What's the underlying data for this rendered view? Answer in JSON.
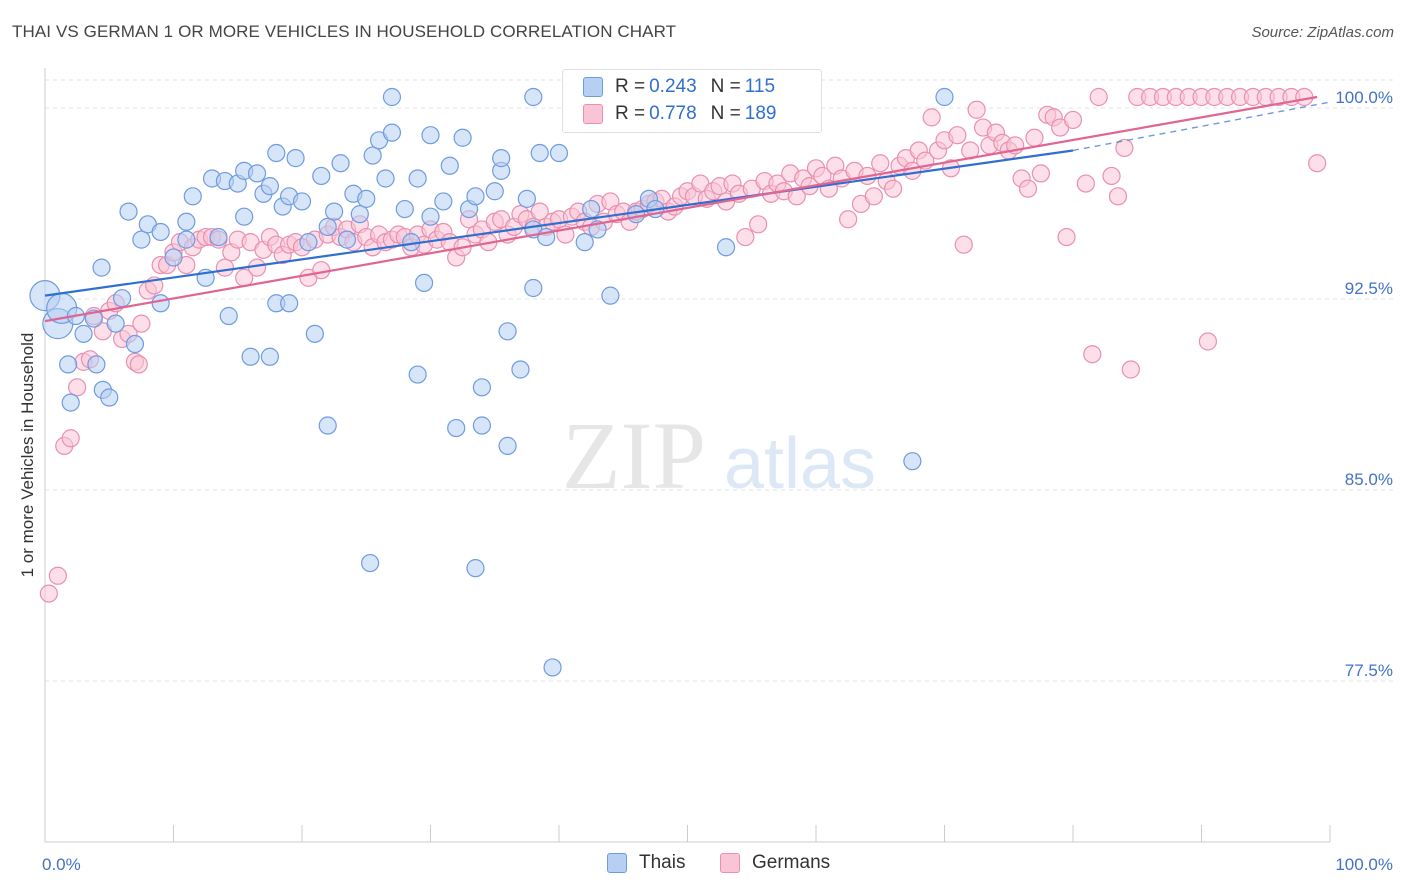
{
  "title": "THAI VS GERMAN 1 OR MORE VEHICLES IN HOUSEHOLD CORRELATION CHART",
  "source": "Source: ZipAtlas.com",
  "watermark": {
    "zip": "ZIP",
    "atlas": "atlas"
  },
  "legend": {
    "r_label": "R =",
    "n_label": "N =",
    "rows": [
      {
        "r": "0.243",
        "n": "115"
      },
      {
        "r": "0.778",
        "n": "189"
      }
    ]
  },
  "colors": {
    "thais_fill": "#b7cff3",
    "thais_stroke": "#6f9be0",
    "thais_line": "#2f6fcf",
    "germans_fill": "#f9c4d6",
    "germans_stroke": "#ea8fb0",
    "germans_line": "#e06593",
    "tick_text": "#4472c4",
    "grid": "#e3e3e3"
  },
  "chart_data": {
    "type": "scatter",
    "title": "THAI VS GERMAN 1 OR MORE VEHICLES IN HOUSEHOLD CORRELATION CHART",
    "xlabel": "",
    "ylabel": "1 or more Vehicles in Household",
    "xlim": [
      0,
      100
    ],
    "ylim": [
      71,
      102
    ],
    "x_ticks": [
      "0.0%",
      "100.0%"
    ],
    "y_ticks": [
      {
        "value": 100,
        "label": "100.0%"
      },
      {
        "value": 92.5,
        "label": "92.5%"
      },
      {
        "value": 85,
        "label": "85.0%"
      },
      {
        "value": 77.5,
        "label": "77.5%"
      }
    ],
    "grid": "horizontal dashed",
    "legend_position": "top-center",
    "series": [
      {
        "name": "Thais",
        "r": 0.243,
        "n": 115,
        "trend": {
          "x0": 0,
          "y0": 92.2,
          "x1": 80,
          "y1": 97.9,
          "dashed_to_x": 100,
          "dashed_to_y": 99.8
        },
        "points": [
          [
            0,
            92.2,
            "l"
          ],
          [
            1,
            91.1,
            "l"
          ],
          [
            1.3,
            91.7,
            "l"
          ],
          [
            1.8,
            89.5
          ],
          [
            2,
            88
          ],
          [
            2.4,
            91.4
          ],
          [
            3,
            90.7
          ],
          [
            3.8,
            91.3
          ],
          [
            4,
            89.5
          ],
          [
            4.5,
            88.5
          ],
          [
            5,
            88.2
          ],
          [
            5.5,
            91.1
          ],
          [
            6,
            92.1
          ],
          [
            4.4,
            93.3
          ],
          [
            6.5,
            95.5
          ],
          [
            7,
            90.3
          ],
          [
            7.5,
            94.4
          ],
          [
            8,
            95
          ],
          [
            9,
            94.7
          ],
          [
            9,
            91.9
          ],
          [
            10,
            93.7
          ],
          [
            11,
            95.1
          ],
          [
            11,
            94.4
          ],
          [
            11.5,
            96.1
          ],
          [
            12.5,
            92.9
          ],
          [
            13,
            96.8
          ],
          [
            13.5,
            94.5
          ],
          [
            14,
            96.7
          ],
          [
            14.3,
            91.4
          ],
          [
            15,
            96.6
          ],
          [
            15.5,
            95.3
          ],
          [
            15.5,
            97.1
          ],
          [
            16,
            89.8
          ],
          [
            16.5,
            97
          ],
          [
            17,
            96.2
          ],
          [
            17.5,
            89.8
          ],
          [
            17.5,
            96.5
          ],
          [
            18,
            91.9
          ],
          [
            18,
            97.8
          ],
          [
            18.5,
            95.7
          ],
          [
            19,
            91.9
          ],
          [
            19,
            96.1
          ],
          [
            19.5,
            97.6
          ],
          [
            20,
            95.9
          ],
          [
            20.5,
            94.3
          ],
          [
            21,
            90.7
          ],
          [
            21.5,
            96.9
          ],
          [
            22,
            94.9
          ],
          [
            22,
            87.1
          ],
          [
            22.5,
            95.5
          ],
          [
            23,
            97.4
          ],
          [
            23.5,
            94.4
          ],
          [
            24,
            96.2
          ],
          [
            24.5,
            95.4
          ],
          [
            25,
            96
          ],
          [
            25.3,
            81.7
          ],
          [
            25.5,
            97.7
          ],
          [
            26,
            98.3
          ],
          [
            26.5,
            96.8
          ],
          [
            27,
            98.6
          ],
          [
            27,
            100
          ],
          [
            28,
            95.6
          ],
          [
            28.5,
            94.3
          ],
          [
            29,
            89.1
          ],
          [
            29,
            96.8
          ],
          [
            29.5,
            92.7
          ],
          [
            30,
            95.3
          ],
          [
            30,
            98.5
          ],
          [
            31,
            95.9
          ],
          [
            31.5,
            97.3
          ],
          [
            32,
            87
          ],
          [
            32.5,
            98.4
          ],
          [
            33,
            95.6
          ],
          [
            33.5,
            81.5
          ],
          [
            33.5,
            96.1
          ],
          [
            34,
            87.1
          ],
          [
            34,
            88.6
          ],
          [
            35,
            96.3
          ],
          [
            35.5,
            97.1
          ],
          [
            35.5,
            97.6
          ],
          [
            36,
            86.3
          ],
          [
            36,
            90.8
          ],
          [
            37,
            89.3
          ],
          [
            37.5,
            96
          ],
          [
            38,
            100
          ],
          [
            38,
            94.8
          ],
          [
            38,
            92.5
          ],
          [
            38.5,
            97.8
          ],
          [
            39,
            94.5
          ],
          [
            39.5,
            77.6
          ],
          [
            40,
            97.8
          ],
          [
            41,
            100
          ],
          [
            42,
            94.3
          ],
          [
            42.5,
            95.6
          ],
          [
            43,
            94.8
          ],
          [
            44,
            92.2
          ],
          [
            46,
            95.4
          ],
          [
            47,
            96
          ],
          [
            47.5,
            95.6
          ],
          [
            53,
            94.1
          ],
          [
            67.5,
            85.7
          ],
          [
            70,
            100
          ]
        ]
      },
      {
        "name": "Germans",
        "r": 0.778,
        "n": 189,
        "trend": {
          "x0": 0,
          "y0": 91.2,
          "x1": 99,
          "y1": 100
        },
        "points": [
          [
            0.3,
            80.5
          ],
          [
            1,
            81.2
          ],
          [
            1.5,
            86.3
          ],
          [
            2,
            86.6
          ],
          [
            2.5,
            88.6
          ],
          [
            3,
            89.6
          ],
          [
            3.5,
            89.7
          ],
          [
            3.8,
            91.4
          ],
          [
            4.5,
            90.8
          ],
          [
            5,
            91.6
          ],
          [
            5.5,
            91.9
          ],
          [
            6,
            90.5
          ],
          [
            6.5,
            90.7
          ],
          [
            7,
            89.6
          ],
          [
            7.3,
            89.5
          ],
          [
            7.5,
            91.1
          ],
          [
            8,
            92.4
          ],
          [
            8.5,
            92.6
          ],
          [
            9,
            93.4
          ],
          [
            9.5,
            93.4
          ],
          [
            10,
            93.9
          ],
          [
            10.5,
            94.3
          ],
          [
            11,
            93.4
          ],
          [
            11.5,
            94.1
          ],
          [
            12,
            94.4
          ],
          [
            12.5,
            94.5
          ],
          [
            13,
            94.5
          ],
          [
            13.5,
            94.4
          ],
          [
            14,
            93.3
          ],
          [
            14.5,
            93.9
          ],
          [
            15,
            94.4
          ],
          [
            15.5,
            92.9
          ],
          [
            16,
            94.3
          ],
          [
            16.5,
            93.3
          ],
          [
            17,
            94
          ],
          [
            17.5,
            94.5
          ],
          [
            18,
            94.2
          ],
          [
            18.5,
            93.8
          ],
          [
            19,
            94.2
          ],
          [
            19.5,
            94.3
          ],
          [
            20,
            94.1
          ],
          [
            20.5,
            92.9
          ],
          [
            21,
            94.4
          ],
          [
            21.5,
            93.2
          ],
          [
            22,
            94.6
          ],
          [
            22.5,
            94.9
          ],
          [
            23,
            94.5
          ],
          [
            23.5,
            94.8
          ],
          [
            24,
            94.3
          ],
          [
            24.5,
            95
          ],
          [
            25,
            94.5
          ],
          [
            25.5,
            94.1
          ],
          [
            26,
            94.6
          ],
          [
            26.5,
            94.3
          ],
          [
            27,
            94.4
          ],
          [
            27.5,
            94.6
          ],
          [
            28,
            94.5
          ],
          [
            28.5,
            94.1
          ],
          [
            29,
            94.6
          ],
          [
            29.5,
            94.2
          ],
          [
            30,
            94.8
          ],
          [
            30.5,
            94.4
          ],
          [
            31,
            94.7
          ],
          [
            31.5,
            94.3
          ],
          [
            32,
            93.7
          ],
          [
            32.5,
            94.1
          ],
          [
            33,
            95.2
          ],
          [
            33.5,
            94.6
          ],
          [
            34,
            94.8
          ],
          [
            34.5,
            94.3
          ],
          [
            35,
            95.1
          ],
          [
            35.5,
            95.2
          ],
          [
            36,
            94.6
          ],
          [
            36.5,
            94.9
          ],
          [
            37,
            95.4
          ],
          [
            37.5,
            95.2
          ],
          [
            38,
            94.9
          ],
          [
            38.5,
            95.5
          ],
          [
            39,
            94.9
          ],
          [
            39.5,
            95.1
          ],
          [
            40,
            95.2
          ],
          [
            40.5,
            94.6
          ],
          [
            41,
            95.3
          ],
          [
            41.5,
            95.5
          ],
          [
            42,
            95.1
          ],
          [
            42.5,
            94.9
          ],
          [
            43,
            95.8
          ],
          [
            43.5,
            95.1
          ],
          [
            44,
            95.9
          ],
          [
            44.5,
            95.4
          ],
          [
            45,
            95.5
          ],
          [
            45.5,
            95.1
          ],
          [
            46,
            95.5
          ],
          [
            46.5,
            95.6
          ],
          [
            47,
            95.8
          ],
          [
            47.5,
            95.9
          ],
          [
            48,
            96
          ],
          [
            48.5,
            95.5
          ],
          [
            49,
            95.7
          ],
          [
            49.5,
            96.1
          ],
          [
            50,
            96.3
          ],
          [
            50.5,
            96.1
          ],
          [
            51,
            96.6
          ],
          [
            51.5,
            96
          ],
          [
            52,
            96.3
          ],
          [
            52.5,
            96.5
          ],
          [
            53,
            95.9
          ],
          [
            53.5,
            96.6
          ],
          [
            54,
            96.2
          ],
          [
            54.5,
            94.5
          ],
          [
            55,
            96.4
          ],
          [
            55.5,
            95
          ],
          [
            56,
            96.7
          ],
          [
            56.5,
            96.2
          ],
          [
            57,
            96.6
          ],
          [
            57.5,
            96.3
          ],
          [
            58,
            97
          ],
          [
            58.5,
            96.1
          ],
          [
            59,
            96.8
          ],
          [
            59.5,
            96.5
          ],
          [
            60,
            97.2
          ],
          [
            60.5,
            96.9
          ],
          [
            61,
            96.4
          ],
          [
            61.5,
            97.3
          ],
          [
            62,
            96.8
          ],
          [
            62.5,
            95.2
          ],
          [
            63,
            97.1
          ],
          [
            63.5,
            95.8
          ],
          [
            64,
            96.9
          ],
          [
            64.5,
            96.1
          ],
          [
            65,
            97.4
          ],
          [
            65.5,
            96.7
          ],
          [
            66,
            96.4
          ],
          [
            66.5,
            97.3
          ],
          [
            67,
            97.6
          ],
          [
            67.5,
            97.1
          ],
          [
            68,
            97.9
          ],
          [
            68.5,
            97.5
          ],
          [
            69,
            99.2
          ],
          [
            69.5,
            97.9
          ],
          [
            70,
            98.3
          ],
          [
            70.5,
            97.2
          ],
          [
            71,
            98.5
          ],
          [
            71.5,
            94.2
          ],
          [
            72,
            97.9
          ],
          [
            72.5,
            99.5
          ],
          [
            73,
            98.8
          ],
          [
            73.5,
            98.1
          ],
          [
            74,
            98.6
          ],
          [
            74.5,
            98.2
          ],
          [
            75,
            97.9
          ],
          [
            75.5,
            98.1
          ],
          [
            76,
            96.8
          ],
          [
            76.5,
            96.4
          ],
          [
            77,
            98.4
          ],
          [
            77.5,
            97
          ],
          [
            78,
            99.3
          ],
          [
            78.5,
            99.2
          ],
          [
            79,
            98.8
          ],
          [
            79.5,
            94.5
          ],
          [
            80,
            99.1
          ],
          [
            81,
            96.6
          ],
          [
            81.5,
            89.9
          ],
          [
            82,
            100
          ],
          [
            83,
            96.9
          ],
          [
            83.5,
            96.1
          ],
          [
            84,
            98
          ],
          [
            84.5,
            89.3
          ],
          [
            85,
            100
          ],
          [
            86,
            100
          ],
          [
            87,
            100
          ],
          [
            88,
            100
          ],
          [
            89,
            100
          ],
          [
            90,
            100
          ],
          [
            90.5,
            90.4
          ],
          [
            91,
            100
          ],
          [
            92,
            100
          ],
          [
            93,
            100
          ],
          [
            94,
            100
          ],
          [
            95,
            100
          ],
          [
            96,
            100
          ],
          [
            97,
            100
          ],
          [
            98,
            100
          ],
          [
            99,
            97.4
          ]
        ]
      }
    ]
  },
  "x_axis_labels": {
    "left": "0.0%",
    "right": "100.0%"
  }
}
